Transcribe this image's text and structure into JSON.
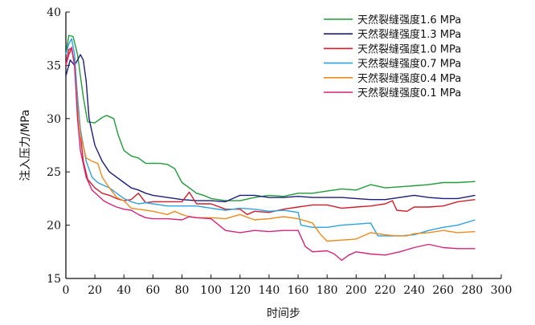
{
  "chart_data": {
    "type": "line",
    "title": "",
    "xlabel": "时间步",
    "ylabel": "注入压力/MPa",
    "xlim": [
      0,
      300
    ],
    "ylim": [
      15,
      40
    ],
    "xticks": [
      0,
      20,
      40,
      60,
      80,
      100,
      120,
      140,
      160,
      180,
      200,
      220,
      240,
      260,
      280,
      300
    ],
    "yticks": [
      15,
      20,
      25,
      30,
      35,
      40
    ],
    "grid": false,
    "legend_position": "top-right",
    "series": [
      {
        "name": "天然裂缝强度1.6 MPa",
        "color": "#1f9c3a",
        "points": [
          [
            0,
            36
          ],
          [
            2,
            37.8
          ],
          [
            5,
            37.7
          ],
          [
            8,
            36
          ],
          [
            10,
            34
          ],
          [
            12,
            32
          ],
          [
            15,
            29.7
          ],
          [
            20,
            29.6
          ],
          [
            25,
            30.1
          ],
          [
            28,
            30.3
          ],
          [
            33,
            30
          ],
          [
            36,
            28.5
          ],
          [
            40,
            27
          ],
          [
            45,
            26.5
          ],
          [
            50,
            26.3
          ],
          [
            55,
            25.8
          ],
          [
            60,
            25.8
          ],
          [
            65,
            25.8
          ],
          [
            70,
            25.7
          ],
          [
            75,
            25.3
          ],
          [
            80,
            24
          ],
          [
            85,
            23.5
          ],
          [
            90,
            23
          ],
          [
            95,
            22.8
          ],
          [
            100,
            22.5
          ],
          [
            110,
            22.3
          ],
          [
            120,
            22.3
          ],
          [
            130,
            22.6
          ],
          [
            140,
            22.8
          ],
          [
            150,
            22.7
          ],
          [
            160,
            23
          ],
          [
            170,
            23
          ],
          [
            180,
            23.2
          ],
          [
            190,
            23.4
          ],
          [
            200,
            23.3
          ],
          [
            210,
            23.8
          ],
          [
            220,
            23.5
          ],
          [
            230,
            23.6
          ],
          [
            240,
            23.7
          ],
          [
            250,
            23.8
          ],
          [
            260,
            24
          ],
          [
            270,
            24
          ],
          [
            282,
            24.1
          ]
        ]
      },
      {
        "name": "天然裂缝强度1.3 MPa",
        "color": "#1c1c7a",
        "points": [
          [
            0,
            34
          ],
          [
            3,
            35.5
          ],
          [
            6,
            35
          ],
          [
            8,
            35.5
          ],
          [
            10,
            36
          ],
          [
            12,
            35.5
          ],
          [
            14,
            33.5
          ],
          [
            16,
            30
          ],
          [
            20,
            27.5
          ],
          [
            25,
            26
          ],
          [
            30,
            25
          ],
          [
            35,
            24.5
          ],
          [
            40,
            24
          ],
          [
            45,
            23.5
          ],
          [
            50,
            23.3
          ],
          [
            55,
            23
          ],
          [
            60,
            22.8
          ],
          [
            70,
            22.6
          ],
          [
            80,
            22.4
          ],
          [
            90,
            22.3
          ],
          [
            100,
            22.3
          ],
          [
            110,
            22.2
          ],
          [
            120,
            22.8
          ],
          [
            130,
            22.8
          ],
          [
            140,
            22.6
          ],
          [
            150,
            22.6
          ],
          [
            160,
            22.7
          ],
          [
            170,
            22.6
          ],
          [
            180,
            22.6
          ],
          [
            190,
            22.6
          ],
          [
            200,
            22.5
          ],
          [
            210,
            22.4
          ],
          [
            220,
            22.4
          ],
          [
            230,
            22.6
          ],
          [
            240,
            22.8
          ],
          [
            250,
            22.6
          ],
          [
            260,
            22.5
          ],
          [
            270,
            22.5
          ],
          [
            282,
            22.8
          ]
        ]
      },
      {
        "name": "天然裂缝强度1.0 MPa",
        "color": "#d01e2a",
        "points": [
          [
            0,
            35
          ],
          [
            2,
            36.5
          ],
          [
            4,
            36.6
          ],
          [
            6,
            35.2
          ],
          [
            8,
            32
          ],
          [
            10,
            28.5
          ],
          [
            12,
            26
          ],
          [
            15,
            24.3
          ],
          [
            20,
            23.5
          ],
          [
            25,
            23
          ],
          [
            30,
            22.8
          ],
          [
            35,
            22.5
          ],
          [
            40,
            22.3
          ],
          [
            45,
            22.4
          ],
          [
            50,
            23
          ],
          [
            55,
            22.1
          ],
          [
            60,
            22.2
          ],
          [
            70,
            22.2
          ],
          [
            80,
            22.2
          ],
          [
            85,
            23.1
          ],
          [
            90,
            22
          ],
          [
            100,
            22
          ],
          [
            110,
            21.5
          ],
          [
            120,
            21.5
          ],
          [
            125,
            21
          ],
          [
            130,
            21.3
          ],
          [
            140,
            21.2
          ],
          [
            150,
            21.5
          ],
          [
            160,
            21.7
          ],
          [
            170,
            21.9
          ],
          [
            180,
            21.9
          ],
          [
            190,
            21.6
          ],
          [
            200,
            21.7
          ],
          [
            210,
            21.8
          ],
          [
            220,
            22
          ],
          [
            225,
            22.3
          ],
          [
            228,
            21.4
          ],
          [
            235,
            21.3
          ],
          [
            240,
            21.7
          ],
          [
            250,
            21.7
          ],
          [
            260,
            21.8
          ],
          [
            270,
            22.2
          ],
          [
            282,
            22.4
          ]
        ]
      },
      {
        "name": "天然裂缝强度0.7 MPa",
        "color": "#2ba3e0",
        "points": [
          [
            0,
            36
          ],
          [
            2,
            37
          ],
          [
            4,
            37.5
          ],
          [
            6,
            36
          ],
          [
            8,
            32
          ],
          [
            10,
            29
          ],
          [
            14,
            26
          ],
          [
            18,
            24.5
          ],
          [
            22,
            24
          ],
          [
            25,
            23.8
          ],
          [
            30,
            23.5
          ],
          [
            35,
            23
          ],
          [
            40,
            22.5
          ],
          [
            45,
            22.2
          ],
          [
            50,
            22
          ],
          [
            55,
            22.1
          ],
          [
            60,
            22
          ],
          [
            70,
            21.8
          ],
          [
            80,
            21.8
          ],
          [
            90,
            21.8
          ],
          [
            100,
            21.6
          ],
          [
            110,
            21.4
          ],
          [
            120,
            21.6
          ],
          [
            130,
            21.5
          ],
          [
            140,
            21.3
          ],
          [
            150,
            21.4
          ],
          [
            160,
            21.2
          ],
          [
            162,
            20
          ],
          [
            170,
            19.8
          ],
          [
            180,
            19.8
          ],
          [
            190,
            20
          ],
          [
            200,
            20.1
          ],
          [
            210,
            20.2
          ],
          [
            215,
            19
          ],
          [
            220,
            19
          ],
          [
            230,
            19
          ],
          [
            240,
            19.1
          ],
          [
            250,
            19.5
          ],
          [
            260,
            19.8
          ],
          [
            270,
            20
          ],
          [
            282,
            20.5
          ]
        ]
      },
      {
        "name": "天然裂缝强度0.4 MPa",
        "color": "#ef8a1c",
        "points": [
          [
            0,
            35
          ],
          [
            2,
            36
          ],
          [
            4,
            36.5
          ],
          [
            6,
            35
          ],
          [
            8,
            31
          ],
          [
            10,
            28.5
          ],
          [
            14,
            26.3
          ],
          [
            18,
            26
          ],
          [
            22,
            25.8
          ],
          [
            25,
            24.5
          ],
          [
            30,
            23.5
          ],
          [
            35,
            22.6
          ],
          [
            40,
            22.3
          ],
          [
            45,
            21.6
          ],
          [
            50,
            21.5
          ],
          [
            55,
            21.4
          ],
          [
            60,
            21.3
          ],
          [
            70,
            21
          ],
          [
            75,
            21.3
          ],
          [
            80,
            21
          ],
          [
            85,
            20.8
          ],
          [
            90,
            20.7
          ],
          [
            100,
            20.7
          ],
          [
            110,
            20.6
          ],
          [
            120,
            21
          ],
          [
            130,
            20.5
          ],
          [
            140,
            20.6
          ],
          [
            150,
            20.8
          ],
          [
            160,
            20.6
          ],
          [
            170,
            20.2
          ],
          [
            175,
            19.2
          ],
          [
            180,
            18.5
          ],
          [
            190,
            18.6
          ],
          [
            200,
            18.7
          ],
          [
            205,
            19
          ],
          [
            210,
            19.3
          ],
          [
            220,
            19.1
          ],
          [
            228,
            19
          ],
          [
            235,
            19
          ],
          [
            240,
            19.2
          ],
          [
            250,
            19.3
          ],
          [
            260,
            19.5
          ],
          [
            270,
            19.3
          ],
          [
            282,
            19.4
          ]
        ]
      },
      {
        "name": "天然裂缝强度0.1 MPa",
        "color": "#d4247a",
        "points": [
          [
            0,
            35
          ],
          [
            2,
            36
          ],
          [
            4,
            36.7
          ],
          [
            6,
            35
          ],
          [
            8,
            30
          ],
          [
            10,
            27
          ],
          [
            14,
            24.5
          ],
          [
            18,
            23.3
          ],
          [
            22,
            22.8
          ],
          [
            26,
            22.3
          ],
          [
            30,
            22
          ],
          [
            35,
            21.7
          ],
          [
            40,
            21.5
          ],
          [
            45,
            21.4
          ],
          [
            50,
            21
          ],
          [
            55,
            20.7
          ],
          [
            60,
            20.6
          ],
          [
            70,
            20.6
          ],
          [
            80,
            20.5
          ],
          [
            85,
            20.8
          ],
          [
            90,
            20.7
          ],
          [
            100,
            20.6
          ],
          [
            110,
            19.5
          ],
          [
            120,
            19.3
          ],
          [
            130,
            19.5
          ],
          [
            140,
            19.4
          ],
          [
            150,
            19.5
          ],
          [
            160,
            19.5
          ],
          [
            165,
            18
          ],
          [
            170,
            17.5
          ],
          [
            180,
            17.6
          ],
          [
            185,
            17.3
          ],
          [
            190,
            16.7
          ],
          [
            195,
            17.2
          ],
          [
            200,
            17.5
          ],
          [
            210,
            17.3
          ],
          [
            220,
            17.2
          ],
          [
            230,
            17.5
          ],
          [
            240,
            17.9
          ],
          [
            250,
            18.2
          ],
          [
            260,
            17.9
          ],
          [
            270,
            17.8
          ],
          [
            282,
            17.8
          ]
        ]
      }
    ]
  }
}
